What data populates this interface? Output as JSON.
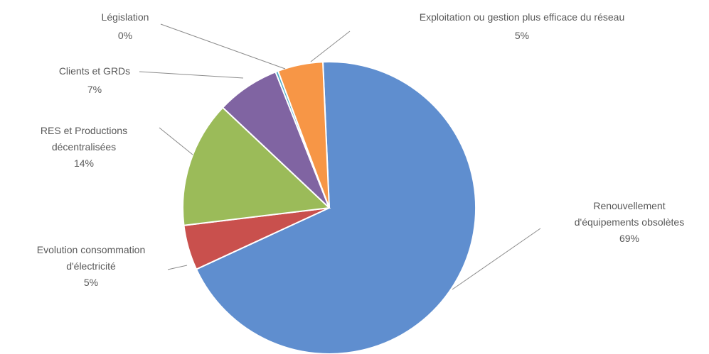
{
  "chart_data": {
    "type": "pie",
    "title": "",
    "slices": [
      {
        "label_lines": [
          "Renouvellement",
          "d'équipements obsolètes"
        ],
        "pct_text": "69%",
        "value": 69,
        "color": "#5f8ecf"
      },
      {
        "label_lines": [
          "Evolution consommation",
          "d'électricité"
        ],
        "pct_text": "5%",
        "value": 5,
        "color": "#c9504d"
      },
      {
        "label_lines": [
          "RES et Productions",
          "décentralisées"
        ],
        "pct_text": "14%",
        "value": 14,
        "color": "#9bbb59"
      },
      {
        "label_lines": [
          "Clients et GRDs"
        ],
        "pct_text": "7%",
        "value": 7,
        "color": "#8064a2"
      },
      {
        "label_lines": [
          "Législation"
        ],
        "pct_text": "0%",
        "value": 0.3,
        "color": "#4bacc6"
      },
      {
        "label_lines": [
          "Exploitation ou gestion plus efficace du réseau"
        ],
        "pct_text": "5%",
        "value": 5,
        "color": "#f79646"
      }
    ]
  }
}
